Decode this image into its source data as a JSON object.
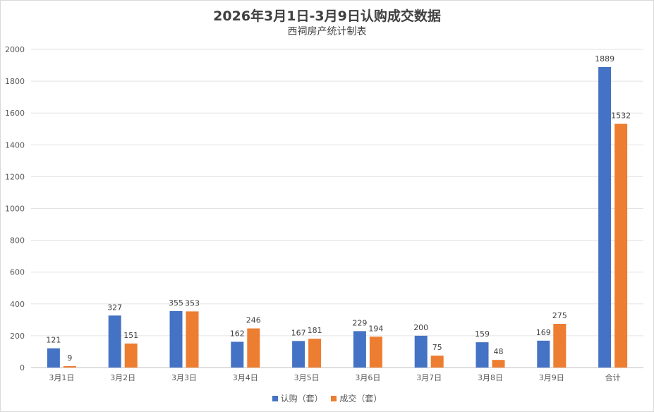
{
  "chart_data": {
    "type": "bar",
    "title": "2026年3月1日-3月9日认购成交数据",
    "subtitle": "西祠房产统计制表",
    "categories": [
      "3月1日",
      "3月2日",
      "3月3日",
      "3月4日",
      "3月5日",
      "3月6日",
      "3月7日",
      "3月8日",
      "3月9日",
      "合计"
    ],
    "series": [
      {
        "name": "认购（套）",
        "color": "#4472C4",
        "values": [
          121,
          327,
          355,
          162,
          167,
          229,
          200,
          159,
          169,
          1889
        ]
      },
      {
        "name": "成交（套）",
        "color": "#ED7D31",
        "values": [
          9,
          151,
          353,
          246,
          181,
          194,
          75,
          48,
          275,
          1532
        ]
      }
    ],
    "ylim": [
      0,
      2000
    ],
    "yticks": [
      0,
      200,
      400,
      600,
      800,
      1000,
      1200,
      1400,
      1600,
      1800,
      2000
    ],
    "grid": true,
    "legend_position": "bottom"
  }
}
